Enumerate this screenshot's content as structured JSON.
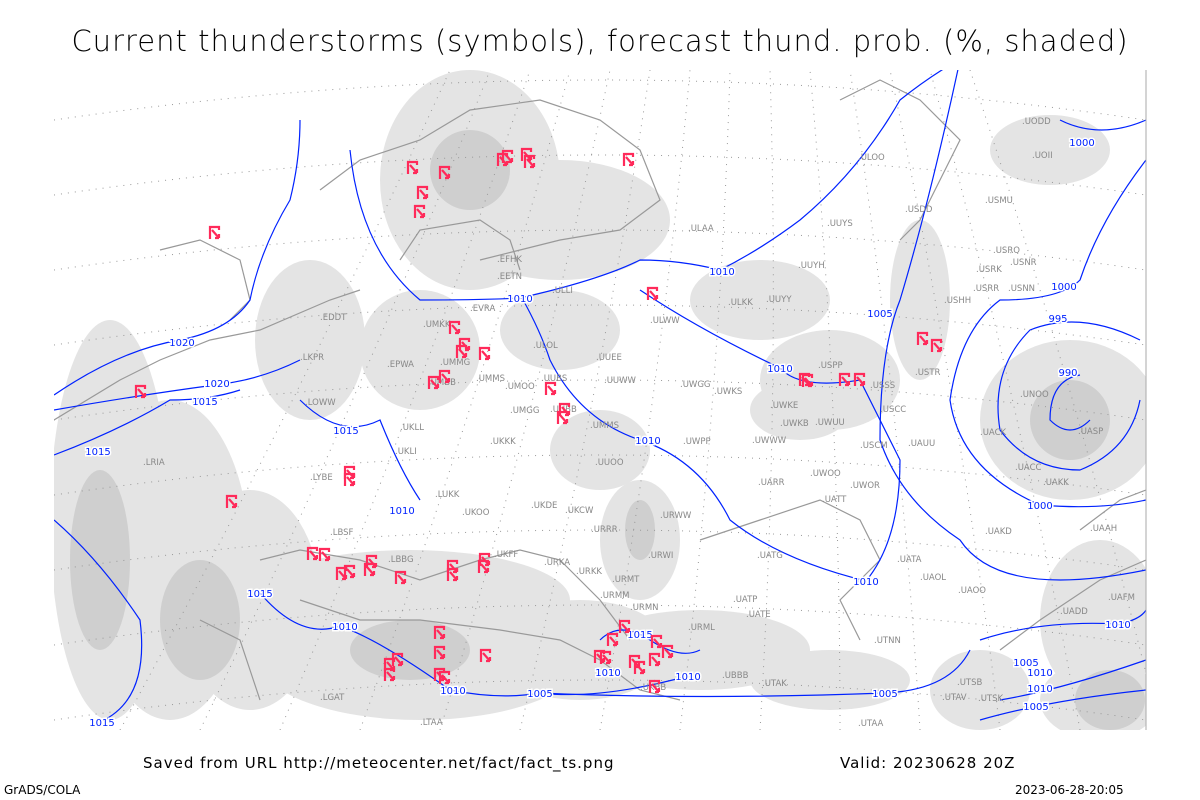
{
  "title": "Current thunderstorms (symbols), forecast thund. prob. (%, shaded)",
  "footer": {
    "source": "Saved from URL http://meteocenter.net/fact/fact_ts.png",
    "valid": "Valid: 20230628 20Z",
    "software": "GrADS/COLA",
    "timestamp": "2023-06-28-20:05"
  },
  "colors": {
    "isobar": "#0022ff",
    "storm_symbol": "#ff2a5a",
    "shading_light": "#e4e4e4",
    "shading_mid": "#cfcfcf",
    "coast": "#999999",
    "grid": "#999999"
  },
  "legend_symbol": "thunderstorm-symbol",
  "stations": [
    "ULOO",
    "ULAA",
    "UUYS",
    "USDD",
    "USMU",
    "UUYH",
    "UUYY",
    "ULKK",
    "USRO",
    "USRK",
    "USNR",
    "USRR",
    "USNN",
    "USHH",
    "USPP",
    "USSS",
    "USTR",
    "UWKS",
    "UODD",
    "UOII",
    "ULLI",
    "EETN",
    "EFHK",
    "EVRA",
    "UMKK",
    "ULOL",
    "UUEE",
    "UUWW",
    "UWGG",
    "ULWW",
    "UMMG",
    "UMMS",
    "UMOO",
    "UUBS",
    "UMBB",
    "UMGG",
    "UUBB",
    "UKLL",
    "UKKK",
    "UKLI",
    "UUOO",
    "UWPP",
    "UWKE",
    "UWKB",
    "UWUU",
    "UWWW",
    "USCC",
    "USCM",
    "UAUU",
    "UARR",
    "UWOO",
    "UWOR",
    "UATT",
    "UATG",
    "UATA",
    "UAOL",
    "UAOO",
    "UAKD",
    "UAAH",
    "UAFM",
    "UADD",
    "UATE",
    "UTNN",
    "UBBB",
    "UTAK",
    "UTAV",
    "UTSB",
    "UTSK",
    "UTAA",
    "UACK",
    "UACC",
    "UAKK",
    "UASP",
    "UNOO",
    "LUKK",
    "UKOO",
    "UKDE",
    "UKCW",
    "URRR",
    "URWW",
    "URWI",
    "UKFF",
    "URKA",
    "URKK",
    "URMT",
    "URMM",
    "URMN",
    "URML",
    "UATP",
    "LBSF",
    "LBBG",
    "LRIA",
    "LYBE",
    "LKPR",
    "LOWW",
    "EPWA",
    "EDDT",
    "UMMS",
    "UKBB",
    "LTAA",
    "LGAT"
  ],
  "isobar_labels": [
    "1020",
    "1020",
    "1015",
    "1015",
    "1015",
    "1010",
    "1010",
    "1010",
    "1010",
    "1010",
    "1010",
    "1015",
    "1010",
    "1015",
    "1010",
    "1010",
    "1010",
    "1005",
    "1005",
    "1005",
    "1000",
    "1000",
    "995",
    "990",
    "1000",
    "1010",
    "1005",
    "1010",
    "1005",
    "1015",
    "1010"
  ]
}
